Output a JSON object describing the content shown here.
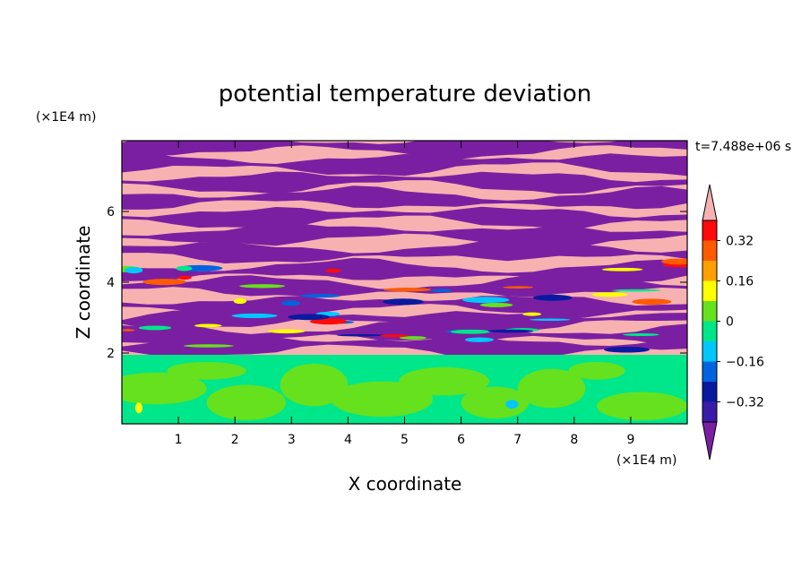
{
  "chart_data": {
    "type": "heatmap",
    "title": "potential temperature deviation",
    "xlabel": "X coordinate",
    "ylabel": "Z coordinate",
    "x_unit": "(×1E4 m)",
    "y_unit": "(×1E4 m)",
    "time_label": "t=7.488e+06 s",
    "xlim": [
      0,
      10
    ],
    "ylim": [
      0,
      8
    ],
    "x_ticks": [
      1,
      2,
      3,
      4,
      5,
      6,
      7,
      8,
      9
    ],
    "y_ticks": [
      2,
      4,
      6
    ],
    "colorbar": {
      "levels": [
        -0.4,
        -0.32,
        -0.24,
        -0.16,
        -0.08,
        0,
        0.08,
        0.16,
        0.24,
        0.32,
        0.4
      ],
      "tick_labels": [
        "0.32",
        "0.16",
        "0",
        "−0.16",
        "−0.32"
      ],
      "tick_values": [
        0.32,
        0.16,
        0,
        -0.16,
        -0.32
      ],
      "colors": [
        "#7b1fa2",
        "#3a1aa8",
        "#0a1aa0",
        "#0064e0",
        "#00c8ff",
        "#00e68a",
        "#66e11e",
        "#ffff00",
        "#ffa000",
        "#ff5a00",
        "#ff0a0a",
        "#f7b1b1"
      ],
      "extend": "both"
    },
    "regions": {
      "mixed_layer_top_z": 1.95,
      "lower_layer": "near zero (green / light-green eddies)",
      "upper_layer": "alternating bands of high (pink) and low (purple) deviation"
    }
  }
}
